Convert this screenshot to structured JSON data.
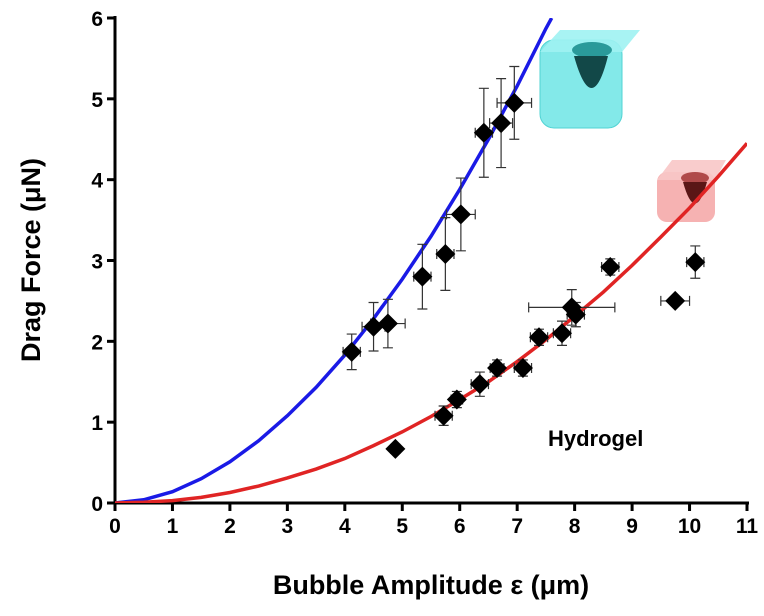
{
  "chart_data": {
    "type": "scatter",
    "xlabel": "Bubble Amplitude ε (μm)",
    "ylabel": "Drag Force (μN)",
    "annotation": "Hydrogel",
    "xlim": [
      0,
      11
    ],
    "ylim": [
      0,
      6
    ],
    "xticks": [
      0,
      1,
      2,
      3,
      4,
      5,
      6,
      7,
      8,
      9,
      10,
      11
    ],
    "yticks": [
      0,
      1,
      2,
      3,
      4,
      5,
      6
    ],
    "series": [
      {
        "type": "line",
        "color": "#1a1ae6",
        "x": [
          0,
          0.5,
          1,
          1.5,
          2,
          2.5,
          3,
          3.5,
          4,
          4.5,
          5,
          5.5,
          6,
          6.5,
          7,
          7.5,
          7.6
        ],
        "values": [
          0,
          0.04,
          0.14,
          0.3,
          0.51,
          0.77,
          1.08,
          1.43,
          1.83,
          2.28,
          2.77,
          3.3,
          3.88,
          4.5,
          5.16,
          5.87,
          6.0
        ]
      },
      {
        "type": "line",
        "color": "#e02424",
        "x": [
          0,
          0.5,
          1,
          1.5,
          2,
          2.5,
          3,
          3.5,
          4,
          4.5,
          5,
          5.5,
          6,
          6.5,
          7,
          7.5,
          8,
          8.5,
          9,
          9.5,
          10,
          10.5,
          11
        ],
        "values": [
          0,
          0.01,
          0.03,
          0.07,
          0.13,
          0.21,
          0.31,
          0.42,
          0.55,
          0.71,
          0.88,
          1.07,
          1.28,
          1.5,
          1.75,
          2.02,
          2.31,
          2.61,
          2.94,
          3.29,
          3.65,
          4.04,
          4.45
        ]
      },
      {
        "type": "scatter",
        "color": "#000000",
        "x": [
          4.12,
          4.5,
          4.75,
          5.35,
          5.75,
          6.02,
          6.42,
          6.72,
          6.95
        ],
        "values": [
          1.87,
          2.18,
          2.22,
          2.8,
          3.08,
          3.57,
          4.58,
          4.7,
          4.95
        ],
        "xerr": [
          0.15,
          0.2,
          0.3,
          0.15,
          0.15,
          0.25,
          0.15,
          0.2,
          0.3
        ],
        "yerr": [
          0.22,
          0.3,
          0.3,
          0.4,
          0.45,
          0.45,
          0.55,
          0.55,
          0.45
        ]
      },
      {
        "type": "scatter",
        "color": "#000000",
        "x": [
          4.88,
          5.72,
          5.95,
          6.35,
          6.65,
          7.1,
          7.38,
          7.78,
          7.95,
          8.02,
          8.62,
          9.75,
          10.1
        ],
        "values": [
          0.67,
          1.08,
          1.28,
          1.47,
          1.67,
          1.67,
          2.05,
          2.1,
          2.42,
          2.33,
          2.92,
          2.5,
          2.98
        ],
        "xerr": [
          0.08,
          0.15,
          0.1,
          0.15,
          0.12,
          0.15,
          0.15,
          0.15,
          0.75,
          0.15,
          0.15,
          0.25,
          0.15
        ],
        "yerr": [
          0.05,
          0.12,
          0.1,
          0.15,
          0.1,
          0.1,
          0.1,
          0.15,
          0.22,
          0.15,
          0.1,
          0.05,
          0.2
        ]
      }
    ]
  }
}
